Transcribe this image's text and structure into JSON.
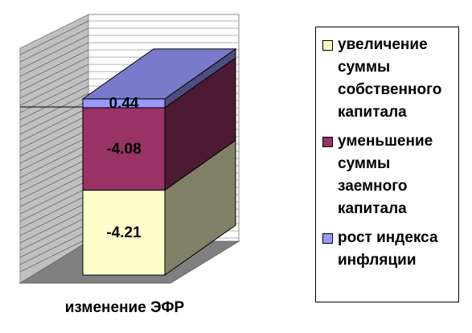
{
  "chart_data": {
    "type": "bar",
    "stacked": true,
    "categories": [
      "изменение ЭФР"
    ],
    "series": [
      {
        "name": "увеличение суммы собственного капитала",
        "color": "#ffffcc",
        "values": [
          -4.21
        ]
      },
      {
        "name": "уменьшение суммы заемного капитала",
        "color": "#993366",
        "values": [
          -4.08
        ]
      },
      {
        "name": "рост индекса инфляции",
        "color": "#9999ff",
        "values": [
          0.44
        ]
      }
    ]
  }
}
